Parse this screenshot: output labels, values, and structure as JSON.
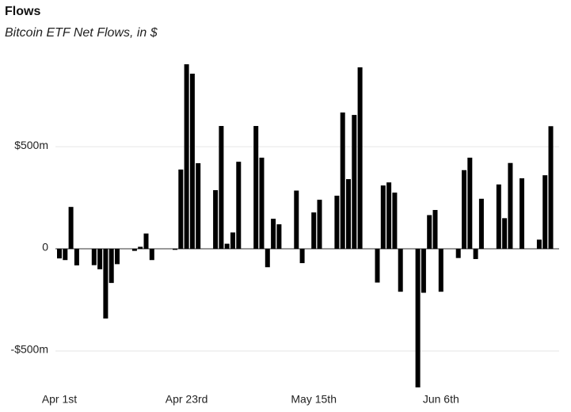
{
  "chart_data": {
    "type": "bar",
    "title": "Flows",
    "subtitle": "Bitcoin ETF Net Flows, in $",
    "categories": [
      "Apr 1st",
      null,
      null,
      null,
      null,
      null,
      null,
      null,
      null,
      null,
      null,
      null,
      null,
      null,
      null,
      null,
      null,
      null,
      null,
      null,
      null,
      null,
      "Apr 23rd",
      null,
      null,
      null,
      null,
      null,
      null,
      null,
      null,
      null,
      null,
      null,
      null,
      null,
      null,
      null,
      null,
      null,
      null,
      null,
      null,
      null,
      "May 15th",
      null,
      null,
      null,
      null,
      null,
      null,
      null,
      null,
      null,
      null,
      null,
      null,
      null,
      null,
      null,
      null,
      null,
      null,
      null,
      null,
      null,
      "Jun 6th",
      null,
      null,
      null,
      null,
      null,
      null,
      null,
      null,
      null,
      null,
      null,
      null,
      null,
      null,
      null,
      null,
      null,
      null,
      null
    ],
    "values": [
      -47,
      -55,
      205,
      -81,
      null,
      null,
      -80,
      -100,
      -341,
      -167,
      -75,
      null,
      null,
      -10,
      10,
      75,
      -55,
      null,
      null,
      null,
      -5,
      388,
      903,
      857,
      419,
      null,
      null,
      287,
      601,
      25,
      80,
      426,
      null,
      null,
      601,
      446,
      -90,
      147,
      120,
      null,
      null,
      285,
      -70,
      null,
      178,
      240,
      null,
      null,
      260,
      667,
      341,
      655,
      888,
      null,
      null,
      -165,
      310,
      325,
      275,
      -210,
      null,
      null,
      -678,
      -215,
      165,
      190,
      -210,
      null,
      null,
      -45,
      385,
      446,
      -50,
      245,
      null,
      null,
      315,
      150,
      420,
      null,
      345,
      null,
      null,
      45,
      360,
      600
    ],
    "color": "#000000",
    "ylim": [
      -700,
      950
    ],
    "yticks": [
      {
        "value": -500,
        "label": "-$500m"
      },
      0,
      {
        "value": 500,
        "label": "$500m"
      }
    ],
    "grid": true
  }
}
